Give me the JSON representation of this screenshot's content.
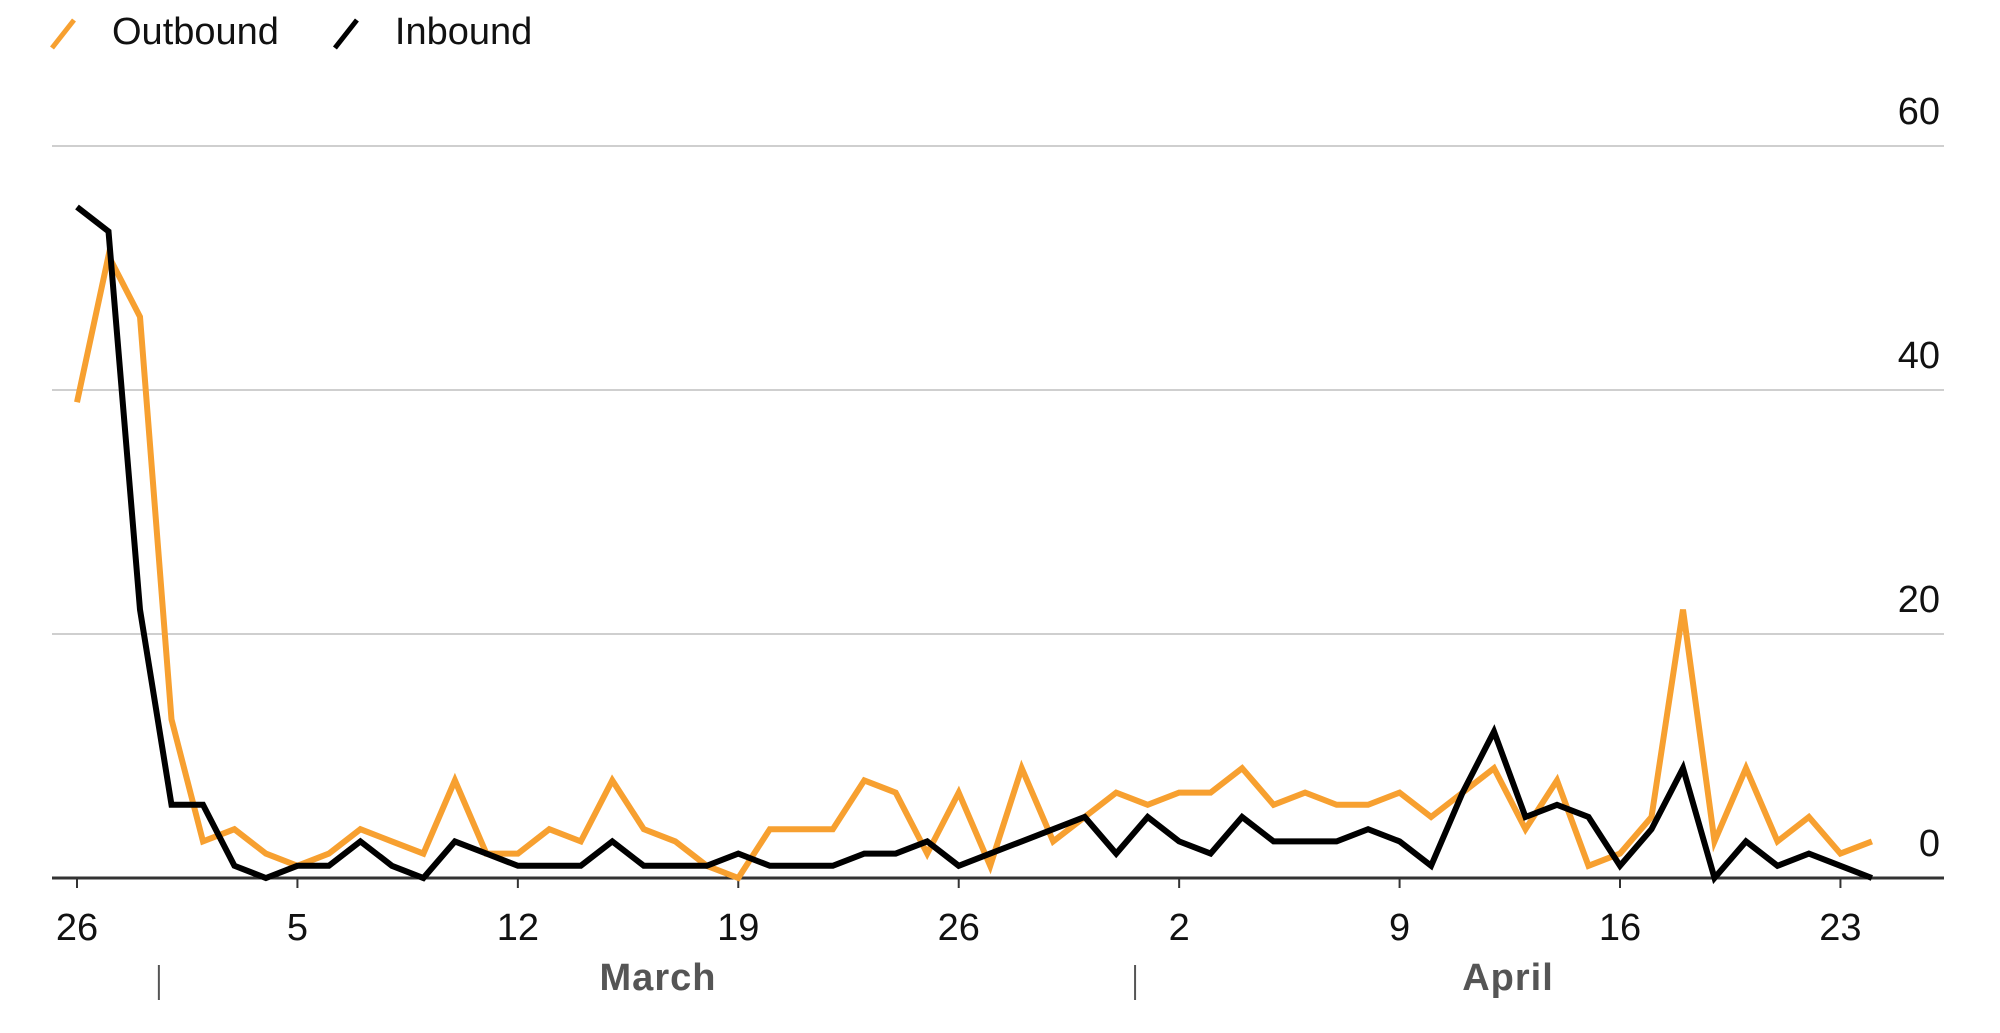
{
  "chart_data": {
    "type": "line",
    "categories": [
      "26",
      null,
      null,
      null,
      null,
      null,
      null,
      "5",
      null,
      null,
      null,
      null,
      null,
      null,
      "12",
      null,
      null,
      null,
      null,
      null,
      null,
      "19",
      null,
      null,
      null,
      null,
      null,
      null,
      "26",
      null,
      null,
      null,
      null,
      null,
      null,
      "2",
      null,
      null,
      null,
      null,
      null,
      null,
      "9",
      null,
      null,
      null,
      null,
      null,
      null,
      "16",
      null,
      null,
      null,
      null,
      null,
      null,
      "23",
      null
    ],
    "month_labels": [
      "March",
      "April"
    ],
    "series": [
      {
        "name": "Outbound",
        "color": "#f7a030",
        "values": [
          39,
          51,
          46,
          13,
          3,
          4,
          2,
          1,
          2,
          4,
          3,
          2,
          8,
          2,
          2,
          4,
          3,
          8,
          4,
          3,
          1,
          0,
          4,
          4,
          4,
          8,
          7,
          2,
          7,
          1,
          9,
          3,
          5,
          7,
          6,
          7,
          7,
          9,
          6,
          7,
          6,
          6,
          7,
          5,
          7,
          9,
          4,
          8,
          1,
          2,
          5,
          22,
          3,
          9,
          3,
          5,
          2,
          3
        ]
      },
      {
        "name": "Inbound",
        "color": "#000000",
        "values": [
          55,
          53,
          22,
          6,
          6,
          1,
          0,
          1,
          1,
          3,
          1,
          0,
          3,
          2,
          1,
          1,
          1,
          3,
          1,
          1,
          1,
          2,
          1,
          1,
          1,
          2,
          2,
          3,
          1,
          2,
          3,
          4,
          5,
          2,
          5,
          3,
          2,
          5,
          3,
          3,
          3,
          4,
          3,
          1,
          7,
          12,
          5,
          6,
          5,
          1,
          4,
          9,
          0,
          3,
          1,
          2,
          1,
          0
        ]
      }
    ],
    "ylim": [
      0,
      60
    ],
    "yticks": [
      0,
      20,
      40,
      60
    ],
    "grid": true
  }
}
